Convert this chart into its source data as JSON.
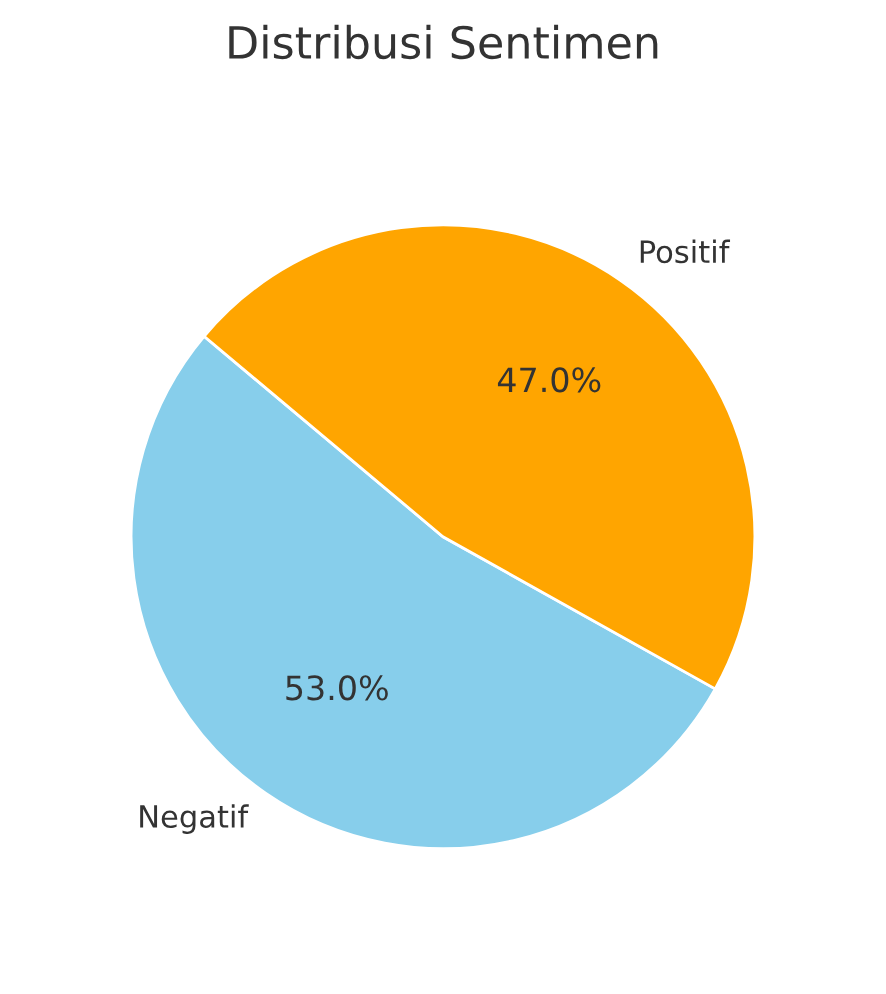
{
  "chart_data": {
    "type": "pie",
    "title": "Distribusi Sentimen",
    "categories": [
      "Negatif",
      "Positif"
    ],
    "values": [
      53.0,
      47.0
    ],
    "colors": [
      "#87ceeb",
      "#ffa500"
    ],
    "value_labels": [
      "53.0%",
      "47.0%"
    ],
    "legend": false
  }
}
